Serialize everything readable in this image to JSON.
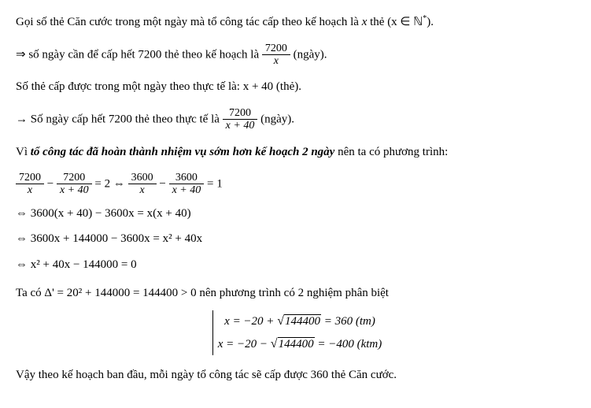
{
  "p1_a": "Gọi số thẻ Căn cước trong một ngày mà tổ công tác cấp theo kế hoạch là ",
  "p1_var": "x",
  "p1_b": " thẻ ",
  "p1_cond": "(x ∈ ℕ",
  "p1_star": "*",
  "p1_close": ").",
  "p2_arrow": "⇒",
  "p2_a": " số ngày cần để cấp hết 7200 thẻ theo kế hoạch là ",
  "p2_num": "7200",
  "p2_den": "x",
  "p2_b": " (ngày).",
  "p3": "Số thẻ cấp được trong một ngày theo thực tế là:  x + 40   (thẻ).",
  "p4_arrow": "→",
  "p4_a": " Số ngày cấp hết 7200 thẻ theo thực tế là ",
  "p4_num": "7200",
  "p4_den": "x + 40",
  "p4_b": " (ngày).",
  "p5_a": "Vì ",
  "p5_bold": "tổ công tác đã hoàn thành nhiệm vụ sớm hơn kế hoạch 2 ngày",
  "p5_b": " nên ta có phương trình:",
  "eq1_f1n": "7200",
  "eq1_f1d": "x",
  "eq1_m1": " − ",
  "eq1_f2n": "7200",
  "eq1_f2d": "x + 40",
  "eq1_m2": " = 2 ⇔ ",
  "eq1_f3n": "3600",
  "eq1_f3d": "x",
  "eq1_m3": " − ",
  "eq1_f4n": "3600",
  "eq1_f4d": "x + 40",
  "eq1_m4": " = 1",
  "eq2": "⇔ 3600(x + 40) − 3600x = x(x + 40)",
  "eq3": "⇔ 3600x + 144000 − 3600x = x² + 40x",
  "eq4": "⇔ x² + 40x − 144000 = 0",
  "p6": "Ta có  Δ' = 20² + 144000 = 144400 > 0  nên phương trình có 2 nghiệm phân biệt",
  "sol1_a": "x = −20 + ",
  "sol1_rad": "144400",
  "sol1_b": " = 360   (tm)",
  "sol2_a": "x = −20 − ",
  "sol2_rad": "144400",
  "sol2_b": " = −400 (ktm)",
  "p7": "Vậy theo kế hoạch ban đầu, mỗi ngày tổ công tác sẽ cấp được 360 thẻ Căn cước."
}
